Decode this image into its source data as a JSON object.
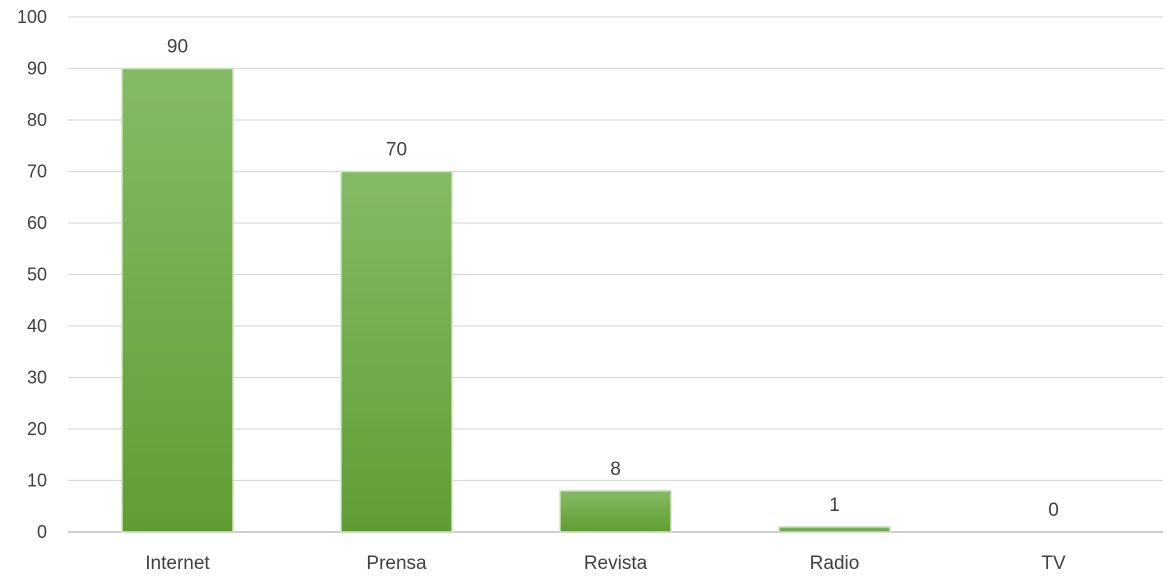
{
  "chart_data": {
    "type": "bar",
    "categories": [
      "Internet",
      "Prensa",
      "Revista",
      "Radio",
      "TV"
    ],
    "values": [
      90,
      70,
      8,
      1,
      0
    ],
    "data_labels": [
      "90",
      "70",
      "8",
      "1",
      "0"
    ],
    "title": "",
    "xlabel": "",
    "ylabel": "",
    "ylim": [
      0,
      100
    ],
    "yticks": [
      0,
      10,
      20,
      30,
      40,
      50,
      60,
      70,
      80,
      90,
      100
    ],
    "ytick_labels": [
      "0",
      "10",
      "20",
      "30",
      "40",
      "50",
      "60",
      "70",
      "80",
      "90",
      "100"
    ],
    "grid": true,
    "legend": "none",
    "colors": {
      "bar_top": "#84bb65",
      "bar_bottom": "#5f9e32",
      "bar_edge": "#cfe3c2",
      "grid": "#d9d9d9",
      "text": "#404040"
    }
  }
}
